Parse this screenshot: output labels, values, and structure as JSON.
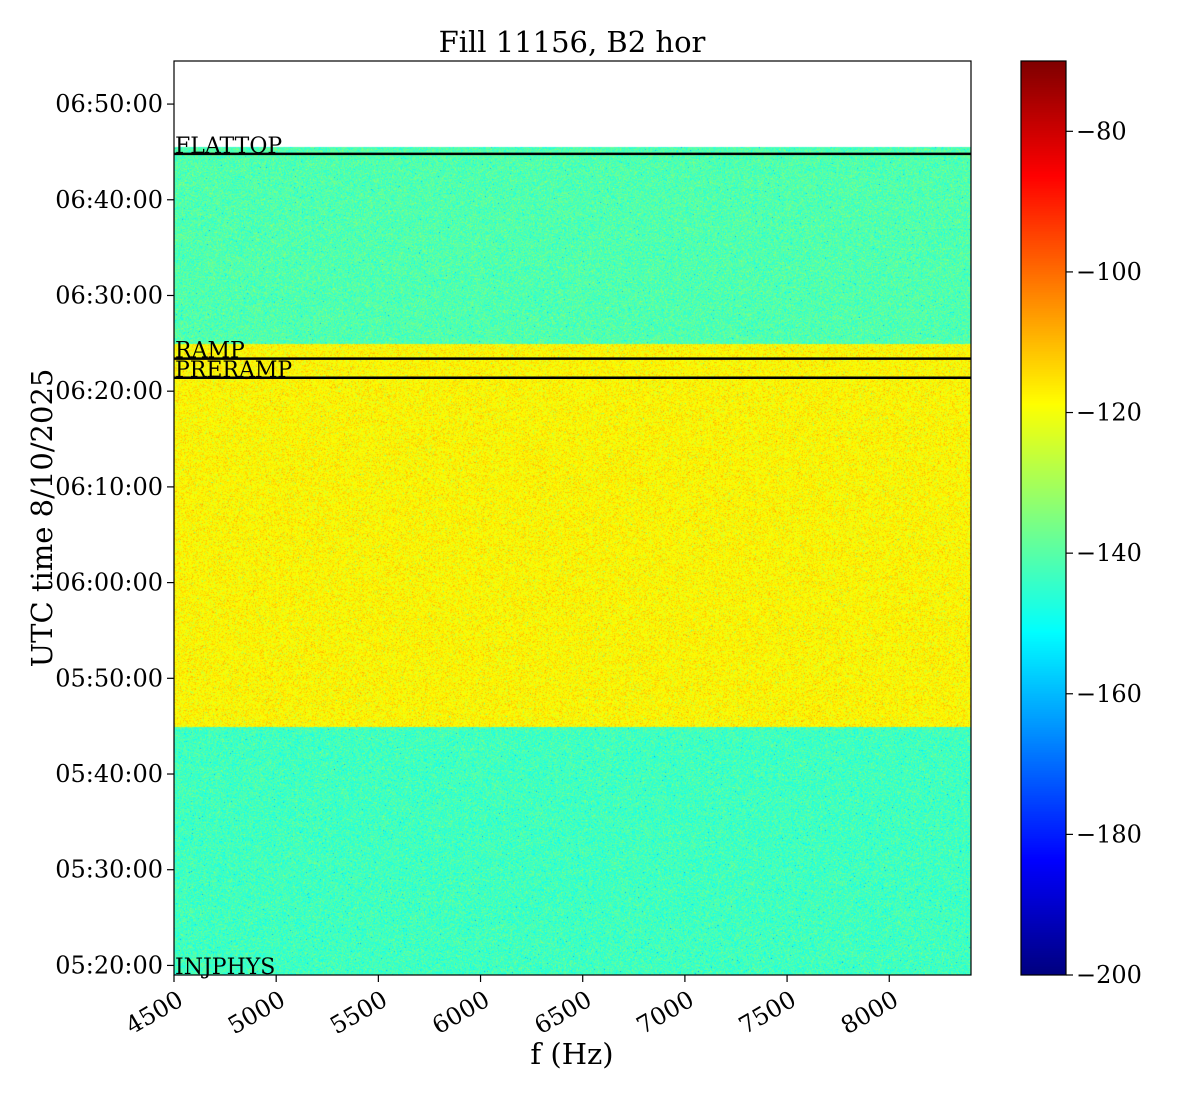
{
  "chart_data": {
    "type": "heatmap",
    "title": "Fill 11156, B2 hor",
    "xlabel": "f (Hz)",
    "ylabel": "UTC time 8/10/2025",
    "xlim": [
      4500,
      8400
    ],
    "ylim_minutes": [
      319.0,
      414.5
    ],
    "data_time_range": [
      "05:19:00",
      "06:45:30"
    ],
    "x_ticks": [
      {
        "value": 4500,
        "label": "4500"
      },
      {
        "value": 5000,
        "label": "5000"
      },
      {
        "value": 5500,
        "label": "5500"
      },
      {
        "value": 6000,
        "label": "6000"
      },
      {
        "value": 6500,
        "label": "6500"
      },
      {
        "value": 7000,
        "label": "7000"
      },
      {
        "value": 7500,
        "label": "7500"
      },
      {
        "value": 8000,
        "label": "8000"
      }
    ],
    "y_ticks": [
      {
        "minutes": 320,
        "label": "05:20:00"
      },
      {
        "minutes": 330,
        "label": "05:30:00"
      },
      {
        "minutes": 340,
        "label": "05:40:00"
      },
      {
        "minutes": 350,
        "label": "05:50:00"
      },
      {
        "minutes": 360,
        "label": "06:00:00"
      },
      {
        "minutes": 370,
        "label": "06:10:00"
      },
      {
        "minutes": 380,
        "label": "06:20:00"
      },
      {
        "minutes": 390,
        "label": "06:30:00"
      },
      {
        "minutes": 400,
        "label": "06:40:00"
      },
      {
        "minutes": 410,
        "label": "06:50:00"
      }
    ],
    "bands": [
      {
        "from_minutes": 319.0,
        "to_minutes": 345.0,
        "mean_level": -143
      },
      {
        "from_minutes": 345.0,
        "to_minutes": 385.0,
        "mean_level": -118
      },
      {
        "from_minutes": 385.0,
        "to_minutes": 405.5,
        "mean_level": -141
      }
    ],
    "phases": [
      {
        "label": "INJPHYS",
        "minutes": 319.0,
        "line": false
      },
      {
        "label": "PRERAMP",
        "minutes": 381.4,
        "line": true
      },
      {
        "label": "RAMP",
        "minutes": 383.4,
        "line": true
      },
      {
        "label": "FLATTOP",
        "minutes": 404.8,
        "line": true
      }
    ],
    "colorbar": {
      "colormap": "jet",
      "range": [
        -200,
        -70
      ],
      "ticks": [
        -80,
        -100,
        -120,
        -140,
        -160,
        -180,
        -200
      ],
      "tick_labels": [
        "−80",
        "−100",
        "−120",
        "−140",
        "−160",
        "−180",
        "−200"
      ]
    },
    "grid": false
  }
}
